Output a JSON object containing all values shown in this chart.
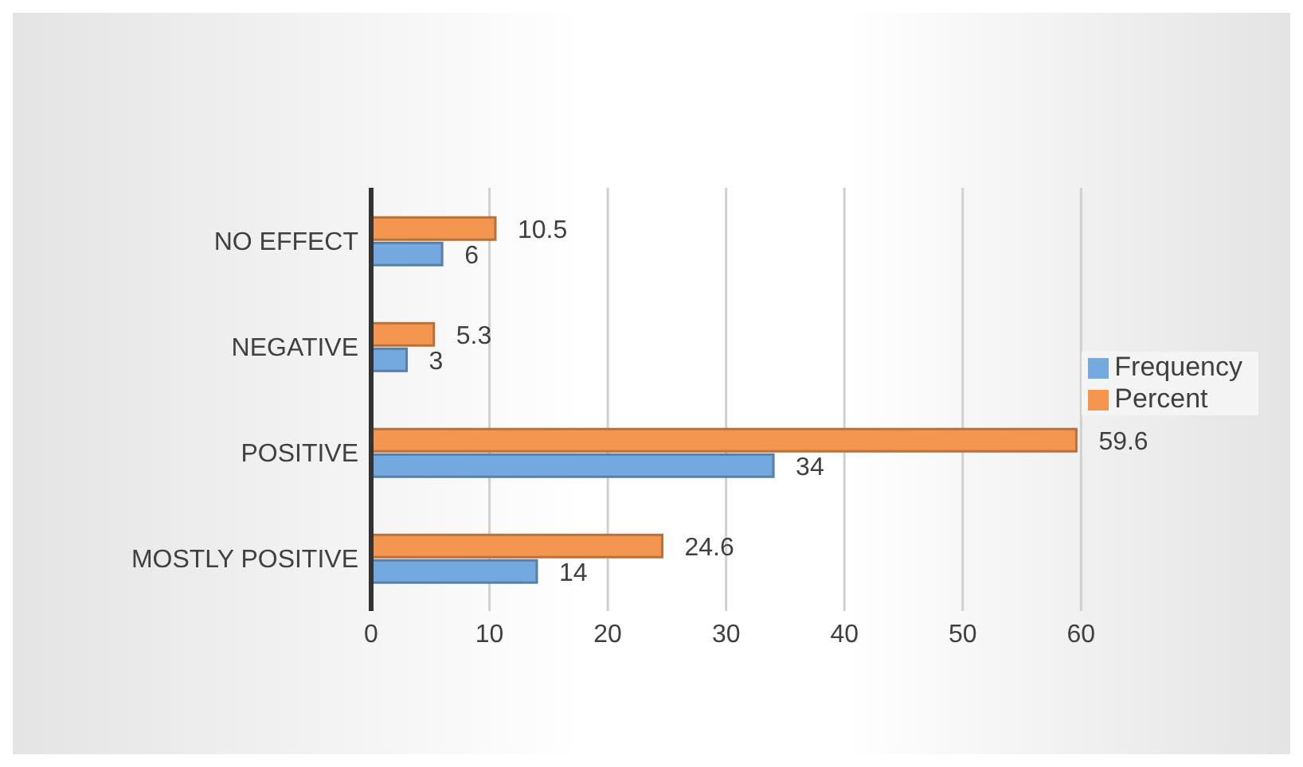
{
  "chart_data": {
    "type": "bar",
    "orientation": "horizontal",
    "categories": [
      "NO EFFECT",
      "NEGATIVE",
      "POSITIVE",
      "MOSTLY POSITIVE"
    ],
    "series": [
      {
        "name": "Percent",
        "color": "#f4964f",
        "values": [
          10.5,
          5.3,
          59.6,
          24.6
        ]
      },
      {
        "name": "Frequency",
        "color": "#74a9e0",
        "values": [
          6,
          3,
          34,
          14
        ]
      }
    ],
    "xlim": [
      0,
      60
    ],
    "xticks": [
      0,
      10,
      20,
      30,
      40,
      50,
      60
    ],
    "grid": "x",
    "legend": "right",
    "data_labels": true
  }
}
